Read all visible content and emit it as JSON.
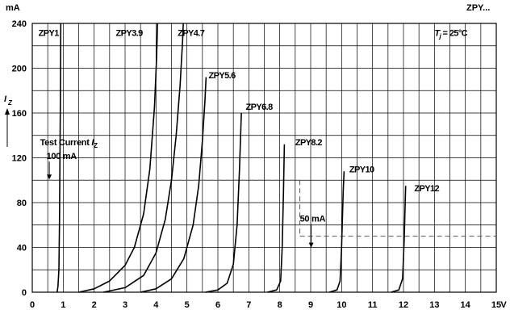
{
  "header": {
    "unit_label": "mA",
    "code_label": "ZPY..."
  },
  "chart_data": {
    "type": "line",
    "title": "",
    "xlabel": "V",
    "ylabel_main": "I",
    "ylabel_sub": "Z",
    "xlim": [
      0,
      15
    ],
    "ylim": [
      0,
      240
    ],
    "x_ticks": [
      0,
      1,
      2,
      3,
      4,
      5,
      6,
      7,
      8,
      9,
      10,
      11,
      12,
      13,
      14,
      15
    ],
    "y_ticks": [
      0,
      40,
      80,
      120,
      160,
      200,
      240
    ],
    "grid": true,
    "temperature_note": {
      "prefix": "T",
      "sub": "j",
      "text": " = 25°C"
    },
    "series": [
      {
        "name": "ZPY1",
        "points": [
          [
            0.8,
            0
          ],
          [
            0.83,
            5
          ],
          [
            0.86,
            20
          ],
          [
            0.88,
            60
          ],
          [
            0.895,
            120
          ],
          [
            0.91,
            180
          ],
          [
            0.92,
            240
          ]
        ]
      },
      {
        "name": "ZPY3.9",
        "points": [
          [
            1.5,
            0
          ],
          [
            2.0,
            3
          ],
          [
            2.5,
            10
          ],
          [
            3.0,
            24
          ],
          [
            3.3,
            40
          ],
          [
            3.6,
            70
          ],
          [
            3.8,
            110
          ],
          [
            3.95,
            165
          ],
          [
            4.02,
            210
          ],
          [
            4.05,
            240
          ]
        ]
      },
      {
        "name": "ZPY4.7",
        "points": [
          [
            2.3,
            0
          ],
          [
            3.0,
            4
          ],
          [
            3.6,
            15
          ],
          [
            4.0,
            35
          ],
          [
            4.3,
            65
          ],
          [
            4.5,
            100
          ],
          [
            4.65,
            140
          ],
          [
            4.78,
            185
          ],
          [
            4.86,
            225
          ],
          [
            4.88,
            240
          ]
        ]
      },
      {
        "name": "ZPY5.6",
        "points": [
          [
            3.5,
            0
          ],
          [
            4.0,
            3
          ],
          [
            4.5,
            12
          ],
          [
            4.9,
            30
          ],
          [
            5.2,
            60
          ],
          [
            5.38,
            95
          ],
          [
            5.5,
            135
          ],
          [
            5.58,
            170
          ],
          [
            5.62,
            192
          ]
        ]
      },
      {
        "name": "ZPY6.8",
        "points": [
          [
            5.6,
            0
          ],
          [
            6.0,
            2
          ],
          [
            6.3,
            8
          ],
          [
            6.5,
            25
          ],
          [
            6.62,
            60
          ],
          [
            6.7,
            110
          ],
          [
            6.76,
            160
          ]
        ]
      },
      {
        "name": "ZPY8.2",
        "points": [
          [
            7.6,
            0
          ],
          [
            7.9,
            2
          ],
          [
            8.03,
            10
          ],
          [
            8.08,
            40
          ],
          [
            8.12,
            90
          ],
          [
            8.15,
            132
          ]
        ]
      },
      {
        "name": "ZPY10",
        "points": [
          [
            9.6,
            0
          ],
          [
            9.85,
            2
          ],
          [
            9.95,
            10
          ],
          [
            10.0,
            40
          ],
          [
            10.05,
            90
          ],
          [
            10.08,
            108
          ]
        ]
      },
      {
        "name": "ZPY12",
        "points": [
          [
            11.6,
            0
          ],
          [
            11.85,
            2
          ],
          [
            11.97,
            12
          ],
          [
            12.02,
            45
          ],
          [
            12.07,
            95
          ]
        ]
      }
    ],
    "labels": [
      {
        "name": "ZPY1",
        "x": 0.2,
        "y": 229
      },
      {
        "name": "ZPY3.9",
        "x": 2.7,
        "y": 229
      },
      {
        "name": "ZPY4.7",
        "x": 4.7,
        "y": 229
      },
      {
        "name": "ZPY5.6",
        "x": 5.7,
        "y": 191
      },
      {
        "name": "ZPY6.8",
        "x": 6.9,
        "y": 163
      },
      {
        "name": "ZPY8.2",
        "x": 8.5,
        "y": 131
      },
      {
        "name": "ZPY10",
        "x": 10.25,
        "y": 107
      },
      {
        "name": "ZPY12",
        "x": 12.35,
        "y": 90
      }
    ],
    "annotations": [
      {
        "id": "test-current",
        "line1": "Test Current ",
        "italic": "I",
        "sub": "Z",
        "line2": "100 mA",
        "x": 0.25,
        "y": 131
      },
      {
        "id": "fifty-ma",
        "text": "50 mA",
        "x": 8.65,
        "y": 63
      }
    ],
    "test_lines": [
      {
        "y": 100,
        "x_from": 0.5,
        "x_to": 8.65
      },
      {
        "y": 50,
        "x_from": 8.65,
        "x_to": 15
      }
    ],
    "test_line_step_x": 8.65
  }
}
